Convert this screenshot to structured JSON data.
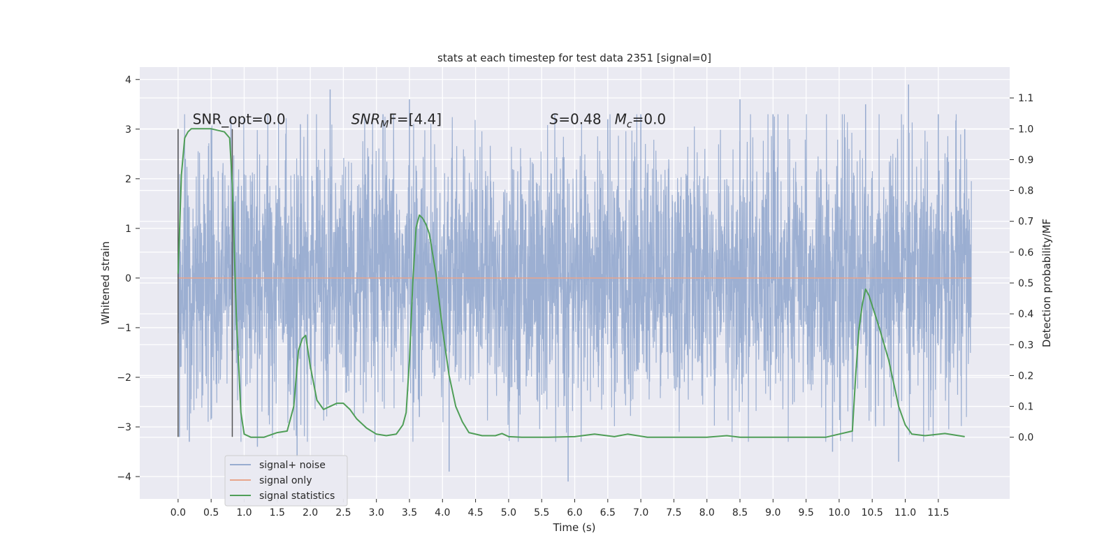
{
  "chart_data": {
    "type": "line",
    "title": "stats at each timestep for test data 2351 [signal=0]",
    "xlabel": "Time (s)",
    "ylabel": "Whitened strain",
    "ylabel_right": "Detection probability/MF",
    "xlim": [
      -0.58,
      12.58
    ],
    "ylim": [
      -4.45,
      4.25
    ],
    "ylim_right": [
      -0.2,
      1.2
    ],
    "x_ticks": [
      0.0,
      0.5,
      1.0,
      1.5,
      2.0,
      2.5,
      3.0,
      3.5,
      4.0,
      4.5,
      5.0,
      5.5,
      6.0,
      6.5,
      7.0,
      7.5,
      8.0,
      8.5,
      9.0,
      9.5,
      10.0,
      10.5,
      11.0,
      11.5
    ],
    "x_tick_labels": [
      "0.0",
      "0.5",
      "1.0",
      "1.5",
      "2.0",
      "2.5",
      "3.0",
      "3.5",
      "4.0",
      "4.5",
      "5.0",
      "5.5",
      "6.0",
      "6.5",
      "7.0",
      "7.5",
      "8.0",
      "8.5",
      "9.0",
      "9.5",
      "10.0",
      "10.5",
      "11.0",
      "11.5"
    ],
    "y_ticks": [
      -4,
      -3,
      -2,
      -1,
      0,
      1,
      2,
      3,
      4
    ],
    "y_tick_labels": [
      "−4",
      "−3",
      "−2",
      "−1",
      "0",
      "1",
      "2",
      "3",
      "4"
    ],
    "y_ticks_right": [
      0.0,
      0.1,
      0.2,
      0.3,
      0.4,
      0.5,
      0.6,
      0.7,
      0.8,
      0.9,
      1.0,
      1.1
    ],
    "y_tick_labels_right": [
      "0.0",
      "0.1",
      "0.2",
      "0.3",
      "0.4",
      "0.5",
      "0.6",
      "0.7",
      "0.8",
      "0.9",
      "1.0",
      "1.1"
    ],
    "grid": true,
    "legend_position": "lower-left",
    "series": [
      {
        "name": "signal+ noise",
        "axis": "left",
        "color": "#98acd0",
        "x_range": [
          0.0,
          12.0
        ],
        "approx_band": [
          -2.0,
          2.0
        ],
        "x": [
          0.0,
          0.02,
          0.17,
          0.5,
          0.8,
          1.2,
          1.8,
          1.85,
          2.3,
          3.1,
          3.5,
          3.65,
          4.1,
          5.9,
          6.5,
          7.0,
          8.5,
          9.0,
          9.9,
          10.4,
          10.9,
          11.05,
          11.5,
          11.9
        ],
        "y": [
          3.0,
          -3.2,
          -3.3,
          3.0,
          3.2,
          -3.4,
          -3.6,
          3.1,
          3.8,
          3.3,
          3.6,
          -2.8,
          -3.9,
          -4.1,
          3.2,
          3.3,
          3.6,
          3.3,
          -3.5,
          3.5,
          -3.7,
          3.9,
          3.3,
          3.0
        ]
      },
      {
        "name": "signal only",
        "axis": "left",
        "color": "#e8a58b",
        "x": [
          0.0,
          12.0
        ],
        "y": [
          0.0,
          0.0
        ]
      },
      {
        "name": "signal statistics",
        "axis": "right",
        "color": "#4f9e57",
        "x": [
          0.0,
          0.05,
          0.1,
          0.15,
          0.2,
          0.3,
          0.5,
          0.7,
          0.78,
          0.82,
          0.88,
          0.95,
          1.0,
          1.1,
          1.3,
          1.5,
          1.65,
          1.75,
          1.82,
          1.88,
          1.93,
          2.0,
          2.1,
          2.2,
          2.3,
          2.4,
          2.5,
          2.6,
          2.7,
          2.85,
          3.0,
          3.15,
          3.3,
          3.4,
          3.45,
          3.5,
          3.55,
          3.6,
          3.65,
          3.7,
          3.75,
          3.8,
          3.9,
          4.0,
          4.1,
          4.2,
          4.3,
          4.4,
          4.6,
          4.8,
          4.9,
          5.0,
          5.2,
          5.6,
          6.0,
          6.3,
          6.6,
          6.8,
          7.1,
          8.0,
          8.3,
          8.5,
          9.0,
          9.8,
          10.2,
          10.25,
          10.3,
          10.35,
          10.4,
          10.45,
          10.6,
          10.75,
          10.9,
          11.0,
          11.1,
          11.3,
          11.6,
          11.9
        ],
        "y": [
          0.53,
          0.85,
          0.97,
          0.99,
          1.0,
          1.0,
          1.0,
          0.99,
          0.97,
          0.82,
          0.4,
          0.08,
          0.01,
          0.0,
          0.0,
          0.015,
          0.02,
          0.1,
          0.28,
          0.32,
          0.33,
          0.23,
          0.12,
          0.09,
          0.1,
          0.11,
          0.11,
          0.09,
          0.06,
          0.03,
          0.01,
          0.005,
          0.01,
          0.04,
          0.08,
          0.25,
          0.5,
          0.68,
          0.72,
          0.71,
          0.69,
          0.66,
          0.53,
          0.35,
          0.2,
          0.1,
          0.05,
          0.015,
          0.005,
          0.005,
          0.012,
          0.002,
          0.0,
          0.0,
          0.002,
          0.01,
          0.002,
          0.01,
          0.0,
          0.0,
          0.005,
          0.0,
          0.0,
          0.0,
          0.02,
          0.2,
          0.35,
          0.43,
          0.48,
          0.46,
          0.36,
          0.25,
          0.1,
          0.04,
          0.01,
          0.005,
          0.012,
          0.002
        ]
      }
    ],
    "vertical_lines": [
      {
        "x": 0.0,
        "y_from": -3.2,
        "y_to": 3.0,
        "color": "#555555"
      },
      {
        "x": 0.82,
        "y_from": -3.2,
        "y_to": 3.0,
        "color": "#555555"
      }
    ],
    "annotations": [
      {
        "id": "snr-opt",
        "text": "SNR_opt=0.0",
        "x": 0.22,
        "y": 3.1
      },
      {
        "id": "snr-mf",
        "x": 2.62,
        "y": 3.1,
        "parts": [
          "SNR",
          "M",
          "F=[4.4]"
        ]
      },
      {
        "id": "s-mc",
        "x": 5.62,
        "y": 3.1,
        "parts": [
          "S",
          "=0.48   ",
          "M",
          "c",
          "=0.0"
        ]
      }
    ]
  }
}
